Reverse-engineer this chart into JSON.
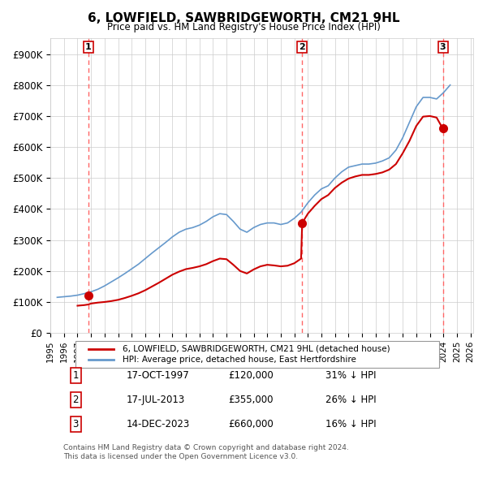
{
  "title": "6, LOWFIELD, SAWBRIDGEWORTH, CM21 9HL",
  "subtitle": "Price paid vs. HM Land Registry's House Price Index (HPI)",
  "ylabel": "",
  "ylim": [
    0,
    950000
  ],
  "yticks": [
    0,
    100000,
    200000,
    300000,
    400000,
    500000,
    600000,
    700000,
    800000,
    900000
  ],
  "ytick_labels": [
    "£0",
    "£100K",
    "£200K",
    "£300K",
    "£400K",
    "£500K",
    "£600K",
    "£700K",
    "£800K",
    "£900K"
  ],
  "background_color": "#ffffff",
  "grid_color": "#cccccc",
  "sale_dates": [
    "1997-10-17",
    "2013-07-17",
    "2023-12-14"
  ],
  "sale_prices": [
    120000,
    355000,
    660000
  ],
  "sale_labels": [
    "1",
    "2",
    "3"
  ],
  "legend_label_red": "6, LOWFIELD, SAWBRIDGEWORTH, CM21 9HL (detached house)",
  "legend_label_blue": "HPI: Average price, detached house, East Hertfordshire",
  "table_rows": [
    [
      "1",
      "17-OCT-1997",
      "£120,000",
      "31% ↓ HPI"
    ],
    [
      "2",
      "17-JUL-2013",
      "£355,000",
      "26% ↓ HPI"
    ],
    [
      "3",
      "14-DEC-2023",
      "£660,000",
      "16% ↓ HPI"
    ]
  ],
  "footer": "Contains HM Land Registry data © Crown copyright and database right 2024.\nThis data is licensed under the Open Government Licence v3.0.",
  "hpi_line_color": "#6699cc",
  "price_line_color": "#cc0000",
  "vline_color": "#ff6666",
  "dot_color": "#cc0000",
  "hpi_data_x": [
    1995.5,
    1996.0,
    1996.5,
    1997.0,
    1997.5,
    1998.0,
    1998.5,
    1999.0,
    1999.5,
    2000.0,
    2000.5,
    2001.0,
    2001.5,
    2002.0,
    2002.5,
    2003.0,
    2003.5,
    2004.0,
    2004.5,
    2005.0,
    2005.5,
    2006.0,
    2006.5,
    2007.0,
    2007.5,
    2008.0,
    2008.5,
    2009.0,
    2009.5,
    2010.0,
    2010.5,
    2011.0,
    2011.5,
    2012.0,
    2012.5,
    2013.0,
    2013.5,
    2014.0,
    2014.5,
    2015.0,
    2015.5,
    2016.0,
    2016.5,
    2017.0,
    2017.5,
    2018.0,
    2018.5,
    2019.0,
    2019.5,
    2020.0,
    2020.5,
    2021.0,
    2021.5,
    2022.0,
    2022.5,
    2023.0,
    2023.5,
    2024.0,
    2024.5
  ],
  "hpi_data_y": [
    115000,
    117000,
    119000,
    122000,
    127000,
    133000,
    141000,
    152000,
    165000,
    178000,
    192000,
    207000,
    222000,
    240000,
    258000,
    275000,
    292000,
    310000,
    325000,
    335000,
    340000,
    348000,
    360000,
    375000,
    385000,
    382000,
    360000,
    335000,
    325000,
    340000,
    350000,
    355000,
    355000,
    350000,
    355000,
    370000,
    390000,
    420000,
    445000,
    465000,
    475000,
    500000,
    520000,
    535000,
    540000,
    545000,
    545000,
    548000,
    555000,
    565000,
    590000,
    630000,
    680000,
    730000,
    760000,
    760000,
    755000,
    775000,
    800000
  ],
  "price_data_x": [
    1997.0,
    1997.5,
    1997.8,
    1998.0,
    1998.5,
    1999.0,
    1999.5,
    2000.0,
    2000.5,
    2001.0,
    2001.5,
    2002.0,
    2002.5,
    2003.0,
    2003.5,
    2004.0,
    2004.5,
    2005.0,
    2005.5,
    2006.0,
    2006.5,
    2007.0,
    2007.5,
    2008.0,
    2008.5,
    2009.0,
    2009.5,
    2010.0,
    2010.5,
    2011.0,
    2011.5,
    2012.0,
    2012.5,
    2013.0,
    2013.5,
    2013.58,
    2014.0,
    2014.5,
    2015.0,
    2015.5,
    2016.0,
    2016.5,
    2017.0,
    2017.5,
    2018.0,
    2018.5,
    2019.0,
    2019.5,
    2020.0,
    2020.5,
    2021.0,
    2021.5,
    2022.0,
    2022.5,
    2023.0,
    2023.5,
    2023.95,
    2024.0
  ],
  "price_data_y": [
    88000,
    90000,
    92000,
    95000,
    98000,
    100000,
    103000,
    107000,
    113000,
    120000,
    128000,
    138000,
    150000,
    162000,
    175000,
    188000,
    198000,
    206000,
    210000,
    215000,
    222000,
    232000,
    240000,
    238000,
    220000,
    200000,
    192000,
    205000,
    215000,
    220000,
    218000,
    215000,
    217000,
    225000,
    240000,
    355000,
    385000,
    410000,
    432000,
    445000,
    468000,
    485000,
    498000,
    505000,
    510000,
    510000,
    513000,
    518000,
    527000,
    545000,
    580000,
    620000,
    668000,
    698000,
    700000,
    695000,
    660000,
    660000
  ]
}
